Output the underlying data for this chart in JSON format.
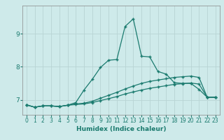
{
  "xlabel": "Humidex (Indice chaleur)",
  "bg_color": "#ceeaea",
  "grid_color": "#b8d4d4",
  "line_color": "#1a7a6e",
  "spine_color": "#888888",
  "xlim": [
    -0.5,
    23.5
  ],
  "ylim": [
    6.55,
    9.85
  ],
  "yticks": [
    7,
    8,
    9
  ],
  "xticks": [
    0,
    1,
    2,
    3,
    4,
    5,
    6,
    7,
    8,
    9,
    10,
    11,
    12,
    13,
    14,
    15,
    16,
    17,
    18,
    19,
    20,
    21,
    22,
    23
  ],
  "line1_x": [
    0,
    1,
    2,
    3,
    4,
    5,
    6,
    7,
    8,
    9,
    10,
    11,
    12,
    13,
    14,
    15,
    16,
    17,
    18,
    19,
    20,
    21,
    22,
    23
  ],
  "line1_y": [
    6.85,
    6.78,
    6.82,
    6.82,
    6.8,
    6.84,
    6.92,
    7.3,
    7.62,
    7.98,
    8.2,
    8.22,
    9.22,
    9.45,
    8.32,
    8.3,
    7.86,
    7.78,
    7.52,
    7.5,
    7.5,
    7.32,
    7.08,
    7.08
  ],
  "line2_x": [
    0,
    1,
    2,
    3,
    4,
    5,
    6,
    7,
    8,
    9,
    10,
    11,
    12,
    13,
    14,
    15,
    16,
    17,
    18,
    19,
    20,
    21,
    22,
    23
  ],
  "line2_y": [
    6.85,
    6.78,
    6.82,
    6.82,
    6.8,
    6.84,
    6.88,
    6.9,
    6.96,
    7.05,
    7.14,
    7.23,
    7.33,
    7.42,
    7.5,
    7.56,
    7.6,
    7.64,
    7.68,
    7.7,
    7.72,
    7.68,
    7.08,
    7.08
  ],
  "line3_x": [
    0,
    1,
    2,
    3,
    4,
    5,
    6,
    7,
    8,
    9,
    10,
    11,
    12,
    13,
    14,
    15,
    16,
    17,
    18,
    19,
    20,
    21,
    22,
    23
  ],
  "line3_y": [
    6.85,
    6.78,
    6.82,
    6.82,
    6.8,
    6.84,
    6.86,
    6.88,
    6.92,
    6.98,
    7.04,
    7.1,
    7.18,
    7.24,
    7.3,
    7.35,
    7.39,
    7.43,
    7.47,
    7.49,
    7.51,
    7.48,
    7.08,
    7.08
  ],
  "marker": "+",
  "markersize": 3.5,
  "linewidth": 0.9,
  "tick_fontsize": 5.5,
  "xlabel_fontsize": 6.5
}
